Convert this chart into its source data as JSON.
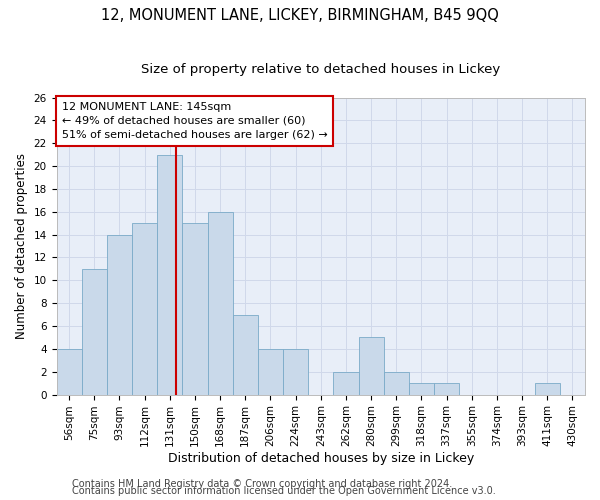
{
  "title": "12, MONUMENT LANE, LICKEY, BIRMINGHAM, B45 9QQ",
  "subtitle": "Size of property relative to detached houses in Lickey",
  "xlabel": "Distribution of detached houses by size in Lickey",
  "ylabel": "Number of detached properties",
  "categories": [
    "56sqm",
    "75sqm",
    "93sqm",
    "112sqm",
    "131sqm",
    "150sqm",
    "168sqm",
    "187sqm",
    "206sqm",
    "224sqm",
    "243sqm",
    "262sqm",
    "280sqm",
    "299sqm",
    "318sqm",
    "337sqm",
    "355sqm",
    "374sqm",
    "393sqm",
    "411sqm",
    "430sqm"
  ],
  "values": [
    4,
    11,
    14,
    15,
    21,
    15,
    16,
    7,
    4,
    4,
    0,
    2,
    5,
    2,
    1,
    1,
    0,
    0,
    0,
    1,
    0
  ],
  "bar_color": "#c9d9ea",
  "bar_edge_color": "#7aaac8",
  "vline_x_index": 4,
  "vline_color": "#cc0000",
  "annotation_text": "12 MONUMENT LANE: 145sqm\n← 49% of detached houses are smaller (60)\n51% of semi-detached houses are larger (62) →",
  "annotation_box_color": "#ffffff",
  "annotation_box_edge_color": "#cc0000",
  "ylim": [
    0,
    26
  ],
  "yticks": [
    0,
    2,
    4,
    6,
    8,
    10,
    12,
    14,
    16,
    18,
    20,
    22,
    24,
    26
  ],
  "grid_color": "#d0d8ea",
  "footer1": "Contains HM Land Registry data © Crown copyright and database right 2024.",
  "footer2": "Contains public sector information licensed under the Open Government Licence v3.0.",
  "bg_color": "#e8eef8",
  "title_fontsize": 10.5,
  "subtitle_fontsize": 9.5,
  "xlabel_fontsize": 9,
  "ylabel_fontsize": 8.5,
  "tick_fontsize": 7.5,
  "footer_fontsize": 7,
  "annotation_fontsize": 8
}
